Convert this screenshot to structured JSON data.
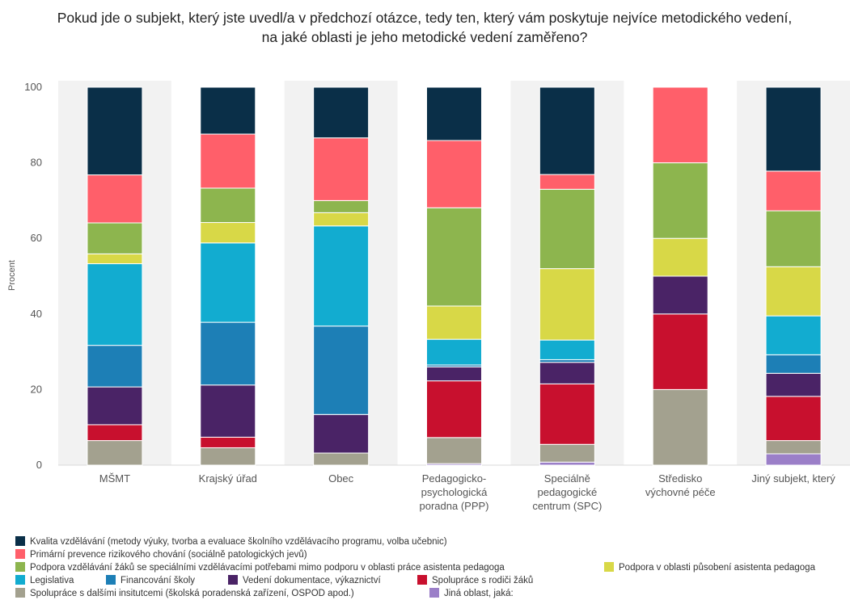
{
  "chart_data": {
    "type": "bar",
    "stacked": true,
    "title_lines": [
      "Pokud jde o subjekt, který jste uvedl/a v předchozí otázce, tedy ten, který vám poskytuje nejvíce metodického vedení,",
      "na jaké oblasti je jeho metodické vedení zaměřeno?"
    ],
    "ylabel": "Procent",
    "ylim": [
      0,
      100
    ],
    "yticks": [
      0,
      20,
      40,
      60,
      80,
      100
    ],
    "grid": "none",
    "legend_position": "bottom",
    "categories": [
      [
        "MŠMT"
      ],
      [
        "Krajský úřad"
      ],
      [
        "Obec"
      ],
      [
        "Pedagogicko-",
        "psychologická",
        "poradna (PPP)"
      ],
      [
        "Speciálně",
        "pedagogické",
        "centrum (SPC)"
      ],
      [
        "Středisko",
        "výchovné péče"
      ],
      [
        "Jiný subjekt, který"
      ]
    ],
    "series": [
      {
        "name": "Jiná oblast, jaká:",
        "color": "#9b7fc8",
        "values": [
          0,
          0,
          0,
          0.4,
          0.8,
          0,
          3.0
        ]
      },
      {
        "name": "Spolupráce s dalšími insitutcemi (školská poradenská zařízení, OSPOD apod.)",
        "color": "#a3a18f",
        "values": [
          6.5,
          4.6,
          3.2,
          6.9,
          4.7,
          20.0,
          3.5
        ]
      },
      {
        "name": "Spolupráce s rodiči žáků",
        "color": "#c8102e",
        "values": [
          4.2,
          2.8,
          0,
          15.0,
          16.0,
          20.0,
          11.7
        ]
      },
      {
        "name": "Vedení dokumentace, výkaznictví",
        "color": "#4a2366",
        "values": [
          10.0,
          13.8,
          10.2,
          3.7,
          5.7,
          10.0,
          6.1
        ]
      },
      {
        "name": "Financování školy",
        "color": "#1d7fb6",
        "values": [
          11.0,
          16.6,
          23.4,
          0.5,
          0.7,
          0,
          4.9
        ]
      },
      {
        "name": "Legislativa",
        "color": "#12acd0",
        "values": [
          21.6,
          21.0,
          26.5,
          6.8,
          5.2,
          0,
          10.3
        ]
      },
      {
        "name": "Podpora v oblasti působení asistenta pedagoga",
        "color": "#d8d847",
        "values": [
          2.6,
          5.4,
          3.5,
          8.8,
          18.9,
          10.0,
          13.0
        ]
      },
      {
        "name": "Podpora vzdělávání žáků se speciálními vzdělávacími potřebami mimo podporu v oblasti práce asistenta pedagoga",
        "color": "#8db54e",
        "values": [
          8.2,
          9.1,
          3.2,
          26.0,
          21.0,
          20.0,
          14.8
        ]
      },
      {
        "name": "Primární prevence rizikového chování (sociálně patologických jevů)",
        "color": "#ff5f6a",
        "values": [
          12.7,
          14.3,
          16.6,
          17.8,
          3.9,
          20.0,
          10.5
        ]
      },
      {
        "name": "Kvalita vzdělávání (metody výuky, tvorba a evaluace školního vzdělávacího programu, volba učebnic)",
        "color": "#0a2f48",
        "values": [
          23.2,
          12.4,
          13.4,
          14.1,
          23.1,
          0,
          22.2
        ]
      }
    ],
    "legend_order": [
      9,
      8,
      7,
      6,
      5,
      4,
      3,
      2,
      1,
      0
    ]
  }
}
